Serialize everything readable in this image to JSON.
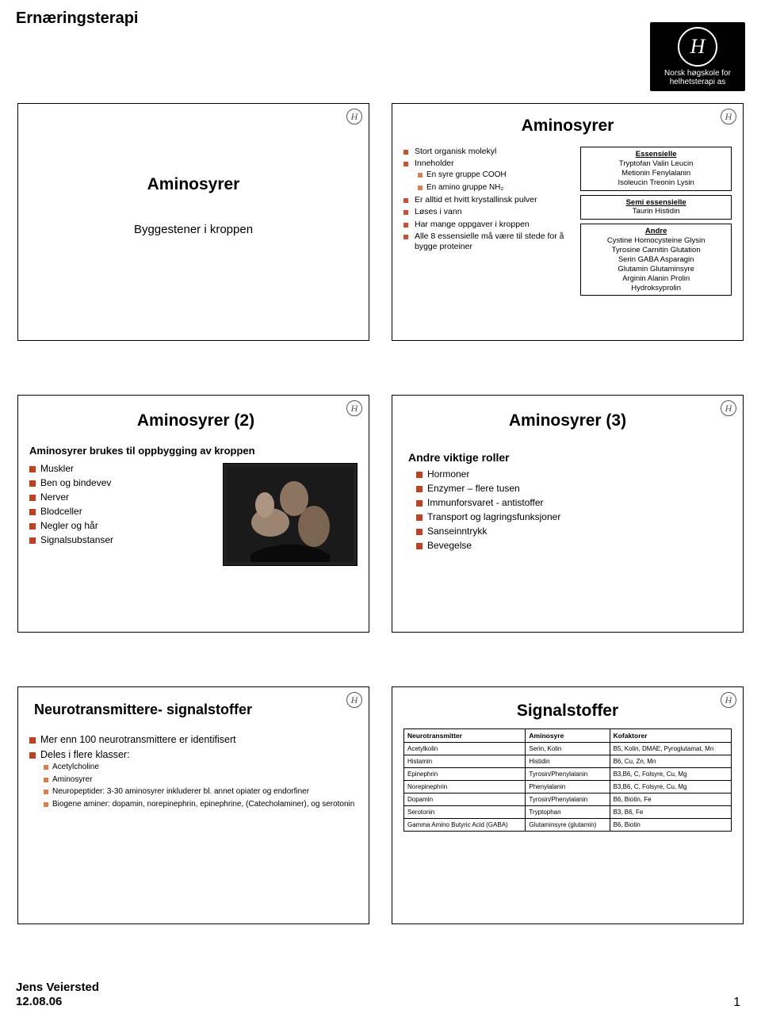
{
  "page": {
    "title": "Ernæringsterapi",
    "logo_line1": "Norsk høgskole for",
    "logo_line2": "helhetsterapi as",
    "footer_author": "Jens Veiersted",
    "footer_date": "12.08.06",
    "page_number": "1"
  },
  "slide1": {
    "title": "Aminosyrer",
    "subtitle": "Byggestener i kroppen"
  },
  "slide2": {
    "title": "Aminosyrer",
    "left_items": [
      {
        "t": "Stort organisk molekyl"
      },
      {
        "t": "Inneholder",
        "sub": [
          {
            "t": "En syre gruppe COOH"
          },
          {
            "t": "En amino gruppe NH₂"
          }
        ]
      },
      {
        "t": "Er alltid et hvitt krystallinsk pulver"
      },
      {
        "t": "Løses i vann"
      },
      {
        "t": "Har mange oppgaver i kroppen"
      },
      {
        "t": "Alle 8 essensielle må være til stede for å bygge proteiner"
      }
    ],
    "box_ess": {
      "hd": "Essensielle",
      "body": "Tryptofan  Valin  Leucin\nMetionin  Fenylalanin\nIsoleucin  Treonin  Lysin"
    },
    "box_semi": {
      "hd": "Semi essensielle",
      "body": "Taurin  Histidin"
    },
    "box_andre": {
      "hd": "Andre",
      "body": "Cystine Homocysteine Glysin\nTyrosine Carnitin Glutation\nSerin  GABA Asparagin\nGlutamin Glutaminsyre\nArginin Alanin  Prolin\nHydroksyprolin"
    }
  },
  "slide3": {
    "title": "Aminosyrer (2)",
    "lead": "Aminosyrer brukes til oppbygging av kroppen",
    "items": [
      "Muskler",
      "Ben og bindevev",
      "Nerver",
      "Blodceller",
      "Negler og hår",
      "Signalsubstanser"
    ]
  },
  "slide4": {
    "title": "Aminosyrer (3)",
    "lead": "Andre viktige roller",
    "items": [
      "Hormoner",
      "Enzymer – flere tusen",
      "Immunforsvaret - antistoffer",
      "Transport og lagringsfunksjoner",
      "Sanseinntrykk",
      "Bevegelse"
    ]
  },
  "slide5": {
    "title": "Neurotransmittere- signalstoffer",
    "items": [
      {
        "t": "Mer enn 100 neurotransmittere er identifisert"
      },
      {
        "t": "Deles i flere klasser:",
        "sub": [
          {
            "t": "Acetylcholine"
          },
          {
            "t": "Aminosyrer"
          },
          {
            "t": "Neuropeptider: 3-30 aminosyrer inkluderer bl. annet opiater og endorfiner"
          },
          {
            "t": "Biogene aminer: dopamin, norepinephrin, epinephrine, (Catecholaminer), og serotonin"
          }
        ]
      }
    ]
  },
  "slide6": {
    "title": "Signalstoffer",
    "columns": [
      "Neurotransmitter",
      "Aminosyre",
      "Kofaktorer"
    ],
    "rows": [
      [
        "Acetylkolin",
        "Serin, Kolin",
        "B5, Kolin, DMAE, Pyroglutamat, Mn"
      ],
      [
        "Histamin",
        "Histidin",
        "B6, Cu, Zn, Mn"
      ],
      [
        "Epinephrin",
        "Tyrosin/Phenylalanin",
        "B3,B6, C, Folsyre, Cu, Mg"
      ],
      [
        "Norepinephrin",
        "Phenylalanin",
        "B3,B6, C, Folsyre, Cu, Mg"
      ],
      [
        "Dopamin",
        "Tyrosin/Phenylalanin",
        "B6, Biotin, Fe"
      ],
      [
        "Serotonin",
        "Tryptophan",
        "B3, B6, Fe"
      ],
      [
        "Gamma Amino Butyric Acid (GABA)",
        "Glutaminsyre (glutamin)",
        "B6, Biotin"
      ]
    ]
  }
}
